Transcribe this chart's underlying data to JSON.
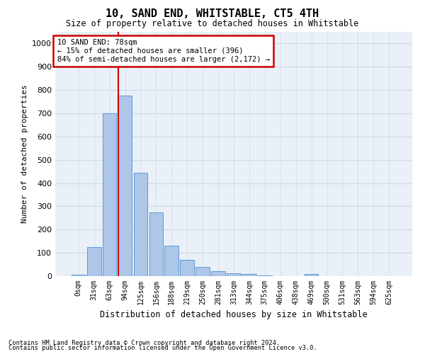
{
  "title": "10, SAND END, WHITSTABLE, CT5 4TH",
  "subtitle": "Size of property relative to detached houses in Whitstable",
  "xlabel": "Distribution of detached houses by size in Whitstable",
  "ylabel": "Number of detached properties",
  "bar_values": [
    5,
    125,
    700,
    775,
    445,
    275,
    130,
    70,
    40,
    22,
    12,
    10,
    2,
    0,
    0,
    8,
    0,
    0,
    0,
    0,
    0
  ],
  "categories": [
    "0sqm",
    "31sqm",
    "63sqm",
    "94sqm",
    "125sqm",
    "156sqm",
    "188sqm",
    "219sqm",
    "250sqm",
    "281sqm",
    "313sqm",
    "344sqm",
    "375sqm",
    "406sqm",
    "438sqm",
    "469sqm",
    "500sqm",
    "531sqm",
    "563sqm",
    "594sqm",
    "625sqm"
  ],
  "bar_color": "#aec6e8",
  "bar_edge_color": "#5b9bd5",
  "grid_color": "#d0d8e8",
  "background_color": "#eaf0f8",
  "vline_x_index": 3,
  "vline_color": "#cc0000",
  "annotation_text": "10 SAND END: 78sqm\n← 15% of detached houses are smaller (396)\n84% of semi-detached houses are larger (2,172) →",
  "annotation_box_color": "#cc0000",
  "ylim": [
    0,
    1050
  ],
  "yticks": [
    0,
    100,
    200,
    300,
    400,
    500,
    600,
    700,
    800,
    900,
    1000
  ],
  "footer_line1": "Contains HM Land Registry data © Crown copyright and database right 2024.",
  "footer_line2": "Contains public sector information licensed under the Open Government Licence v3.0."
}
